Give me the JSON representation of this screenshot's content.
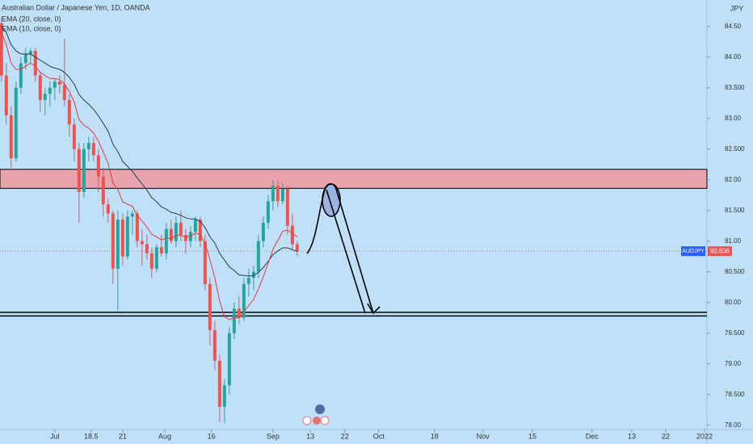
{
  "chart_data": {
    "type": "candlestick",
    "title": "Australian Dollar / Japanese Yen, 1D, OANDA",
    "currency": "JPY",
    "symbol": "AUDJPY",
    "x": [
      0,
      1,
      2,
      3,
      4,
      5,
      6,
      7,
      8,
      9,
      10,
      11,
      12,
      13,
      14,
      15,
      16,
      17,
      18,
      19,
      20,
      21,
      22,
      23,
      24,
      25,
      26,
      27,
      28,
      29,
      30,
      31,
      32,
      33,
      34,
      35,
      36,
      37,
      38,
      39,
      40,
      41,
      42,
      43,
      44,
      45,
      46,
      47,
      48,
      49,
      50,
      51,
      52,
      53,
      54,
      55,
      56,
      57,
      58,
      59,
      60,
      61
    ],
    "open": [
      84.55,
      83.7,
      83.05,
      82.35,
      83.5,
      83.9,
      84.05,
      84.1,
      83.7,
      83.3,
      83.4,
      83.5,
      83.6,
      83.55,
      83.3,
      82.9,
      82.5,
      81.8,
      82.5,
      82.6,
      82.4,
      82.05,
      81.6,
      81.45,
      80.55,
      81.35,
      80.75,
      81.4,
      81.45,
      81.0,
      80.95,
      80.8,
      80.55,
      80.9,
      80.8,
      81.2,
      81.0,
      81.3,
      81.1,
      81.0,
      81.15,
      81.35,
      81.0,
      80.3,
      79.55,
      79.05,
      78.3,
      78.65,
      79.5,
      79.9,
      79.75,
      80.3,
      80.4,
      80.5,
      81.0,
      81.3,
      81.65,
      81.9,
      81.65,
      81.85,
      81.25,
      80.95
    ],
    "high": [
      84.65,
      83.9,
      83.2,
      83.6,
      84.0,
      84.15,
      84.15,
      84.15,
      83.75,
      83.5,
      83.6,
      83.65,
      83.7,
      84.3,
      83.4,
      83.0,
      82.6,
      82.6,
      82.7,
      82.7,
      82.5,
      82.2,
      81.7,
      81.5,
      81.5,
      81.45,
      81.5,
      81.5,
      81.5,
      81.2,
      81.1,
      80.9,
      80.95,
      81.1,
      81.3,
      81.35,
      81.4,
      81.5,
      81.2,
      81.25,
      81.4,
      81.4,
      81.1,
      80.4,
      79.7,
      79.15,
      78.75,
      79.6,
      80.0,
      80.1,
      80.4,
      80.55,
      80.6,
      81.1,
      81.4,
      81.75,
      82.0,
      82.0,
      81.95,
      81.9,
      81.45,
      81.0
    ],
    "low": [
      83.6,
      82.9,
      82.15,
      82.3,
      83.4,
      83.8,
      83.9,
      83.6,
      83.1,
      83.05,
      83.2,
      83.3,
      83.4,
      83.2,
      82.7,
      82.3,
      81.3,
      81.7,
      82.3,
      82.3,
      81.8,
      81.4,
      81.3,
      80.3,
      79.87,
      80.6,
      80.7,
      81.1,
      80.9,
      80.6,
      80.7,
      80.4,
      80.5,
      80.75,
      80.7,
      80.95,
      80.9,
      81.0,
      80.8,
      80.9,
      81.0,
      80.9,
      80.2,
      79.3,
      78.9,
      78.05,
      78.03,
      78.5,
      79.4,
      79.65,
      79.7,
      80.1,
      80.2,
      80.4,
      80.9,
      81.2,
      81.5,
      81.55,
      81.6,
      81.1,
      80.85,
      80.75
    ],
    "close": [
      83.7,
      83.05,
      82.35,
      83.5,
      83.9,
      84.05,
      84.1,
      83.7,
      83.3,
      83.4,
      83.5,
      83.6,
      83.55,
      83.3,
      82.9,
      82.5,
      81.8,
      82.5,
      82.6,
      82.4,
      82.05,
      81.6,
      81.45,
      80.55,
      81.35,
      80.75,
      81.4,
      81.45,
      81.0,
      80.95,
      80.8,
      80.55,
      80.9,
      80.8,
      81.2,
      81.0,
      81.3,
      81.1,
      81.0,
      81.15,
      81.35,
      81.0,
      80.3,
      79.55,
      79.05,
      78.3,
      78.65,
      79.5,
      79.9,
      79.75,
      80.3,
      80.4,
      80.5,
      81.0,
      81.3,
      81.65,
      81.9,
      81.65,
      81.85,
      81.25,
      80.95,
      80.836
    ],
    "up_color": "#26a69a",
    "down_color": "#ef5350",
    "series": [
      {
        "name": "EMA (20, close, 0)",
        "color": "#1f3d5c",
        "values": [
          84.5,
          84.4,
          84.2,
          84.1,
          84.05,
          84.05,
          84.05,
          84.0,
          83.95,
          83.9,
          83.85,
          83.82,
          83.8,
          83.75,
          83.67,
          83.56,
          83.39,
          83.3,
          83.23,
          83.15,
          83.04,
          82.92,
          82.79,
          82.58,
          82.46,
          82.3,
          82.22,
          82.14,
          82.03,
          81.93,
          81.83,
          81.71,
          81.64,
          81.56,
          81.52,
          81.47,
          81.45,
          81.42,
          81.38,
          81.36,
          81.36,
          81.32,
          81.22,
          81.07,
          80.97,
          80.8,
          80.69,
          80.58,
          80.52,
          80.45,
          80.44,
          80.43,
          80.44,
          80.49,
          80.57,
          80.67,
          80.78,
          80.84,
          80.89,
          80.89,
          80.86,
          80.83
        ]
      },
      {
        "name": "EMA (10, close, 0)",
        "color": "#e53935",
        "values": [
          84.4,
          84.2,
          83.9,
          83.8,
          83.8,
          83.85,
          83.9,
          83.85,
          83.75,
          83.7,
          83.65,
          83.65,
          83.63,
          83.56,
          83.44,
          83.27,
          82.98,
          82.89,
          82.84,
          82.76,
          82.63,
          82.45,
          82.27,
          81.95,
          81.84,
          81.64,
          81.6,
          81.57,
          81.42,
          81.33,
          81.23,
          81.11,
          81.07,
          81.02,
          81.05,
          81.04,
          81.09,
          81.09,
          81.07,
          81.08,
          81.13,
          81.11,
          80.96,
          80.7,
          80.4,
          80.02,
          79.77,
          79.72,
          79.75,
          79.75,
          79.85,
          79.95,
          80.05,
          80.22,
          80.42,
          80.64,
          80.87,
          81.01,
          81.16,
          81.18,
          81.13,
          81.07
        ]
      }
    ],
    "xlim": [
      -0.3,
      145.5
    ],
    "xticks": [
      {
        "value": 11,
        "label": "Jul"
      },
      18.5,
      {
        "value": 25,
        "label": "21"
      },
      {
        "value": 33.7,
        "label": "Aug"
      },
      {
        "value": 43.3,
        "label": "16"
      },
      {
        "value": 56,
        "label": "Sep"
      },
      {
        "value": 63.7,
        "label": "13"
      },
      {
        "value": 70.8,
        "label": "22"
      },
      {
        "value": 77.8,
        "label": "Oct"
      },
      {
        "value": 89.3,
        "label": "18"
      },
      {
        "value": 99.3,
        "label": "Nov"
      },
      {
        "value": 109.5,
        "label": "15"
      },
      {
        "value": 121.8,
        "label": "Dec"
      },
      {
        "value": 130,
        "label": "13"
      },
      {
        "value": 137,
        "label": "22"
      },
      {
        "value": 145,
        "label": "2022"
      }
    ],
    "ylim": [
      77.93,
      84.93
    ],
    "yticks": [
      {
        "value": 84.5,
        "label": "84.50"
      },
      {
        "value": 84,
        "label": "84.00"
      },
      {
        "value": 83.5,
        "label": "83.500"
      },
      {
        "value": 83,
        "label": "83.00"
      },
      {
        "value": 82.5,
        "label": "82.500"
      },
      {
        "value": 82,
        "label": "82.00"
      },
      {
        "value": 81.5,
        "label": "81.500"
      },
      {
        "value": 81,
        "label": "81.00"
      },
      {
        "value": 80.5,
        "label": "80.500"
      },
      {
        "value": 80,
        "label": "80.00"
      },
      {
        "value": 79.5,
        "label": "79.500"
      },
      {
        "value": 79,
        "label": "79.00"
      },
      {
        "value": 78.5,
        "label": "78.500"
      },
      {
        "value": 78,
        "label": "78.00"
      }
    ],
    "resistance_zone": [
      81.86,
      82.17
    ],
    "support_zone": [
      79.78,
      79.84
    ],
    "grid": false
  }
}
